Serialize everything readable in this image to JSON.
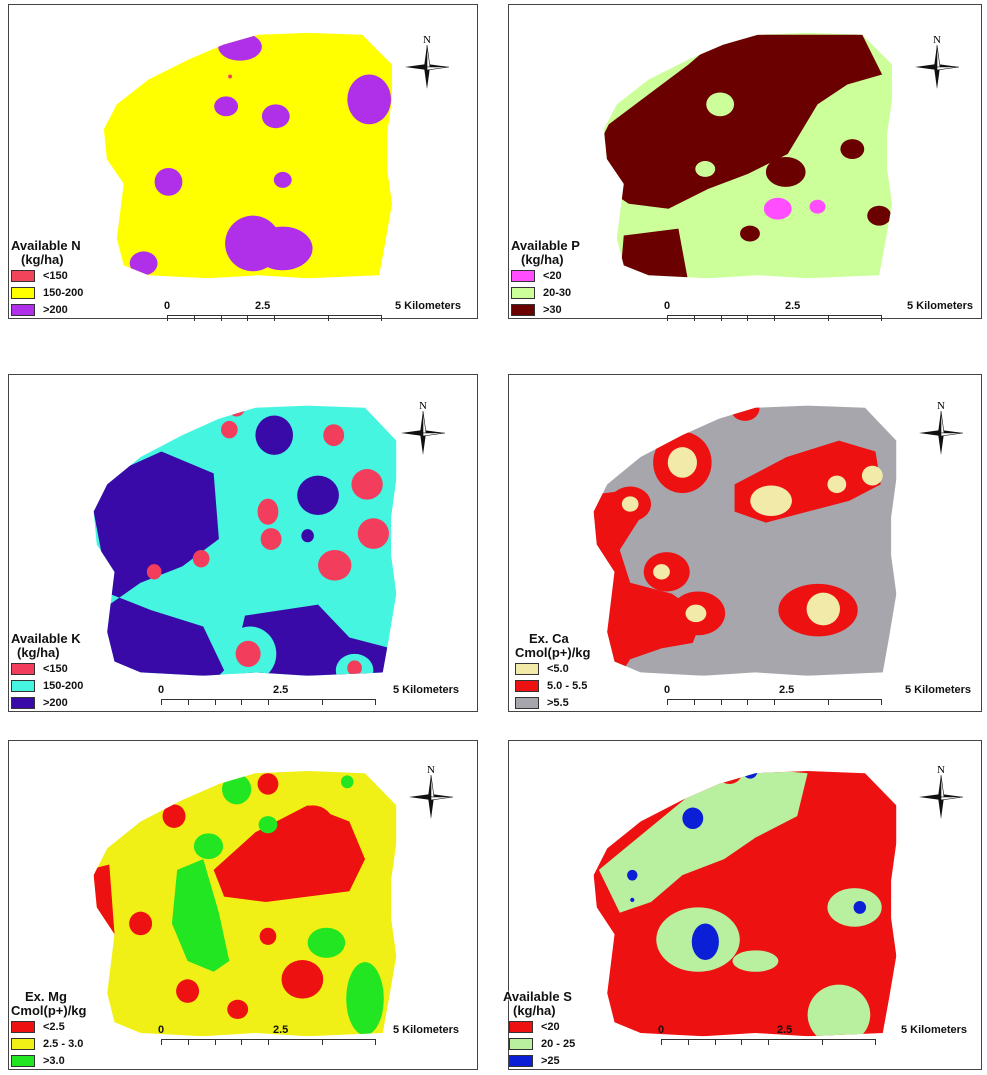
{
  "north_label": "N",
  "scale": {
    "zero": "0",
    "mid": "2.5",
    "end": "5 Kilometers"
  },
  "panels": [
    {
      "key": "n",
      "legend": {
        "title_lines": [
          "Available N",
          "(kg/ha)"
        ],
        "items": [
          {
            "label": "<150",
            "color": "#f2455c"
          },
          {
            "label": "150-200",
            "color": "#ffff00"
          },
          {
            "label": ">200",
            "color": "#b02fe8"
          }
        ]
      }
    },
    {
      "key": "p",
      "legend": {
        "title_lines": [
          "Available P",
          "(kg/ha)"
        ],
        "items": [
          {
            "label": "<20",
            "color": "#ff4dff"
          },
          {
            "label": "20-30",
            "color": "#ccff99"
          },
          {
            "label": ">30",
            "color": "#6b0000"
          }
        ]
      }
    },
    {
      "key": "k",
      "legend": {
        "title_lines": [
          "Available K",
          "(kg/ha)"
        ],
        "items": [
          {
            "label": "<150",
            "color": "#f23d5c"
          },
          {
            "label": "150-200",
            "color": "#45f5e0"
          },
          {
            "label": ">200",
            "color": "#3a0aa8"
          }
        ]
      }
    },
    {
      "key": "ca",
      "legend": {
        "title_lines": [
          "Ex. Ca",
          "Cmol(p+)/kg"
        ],
        "items": [
          {
            "label": "<5.0",
            "color": "#f2eaa8"
          },
          {
            "label": "5.0 - 5.5",
            "color": "#ee1111"
          },
          {
            "label": ">5.5",
            "color": "#a6a6ac"
          }
        ]
      }
    },
    {
      "key": "mg",
      "legend": {
        "title_lines": [
          "Ex. Mg",
          "Cmol(p+)/kg"
        ],
        "items": [
          {
            "label": "<2.5",
            "color": "#ee1111"
          },
          {
            "label": "2.5 - 3.0",
            "color": "#f0f016"
          },
          {
            "label": ">3.0",
            "color": "#22e622"
          }
        ]
      }
    },
    {
      "key": "s",
      "legend": {
        "title_lines": [
          "Available S",
          "(kg/ha)"
        ],
        "items": [
          {
            "label": "<20",
            "color": "#ee1111"
          },
          {
            "label": "20 - 25",
            "color": "#b8f0a0"
          },
          {
            "label": ">25",
            "color": "#0a1fd6"
          }
        ]
      }
    }
  ]
}
